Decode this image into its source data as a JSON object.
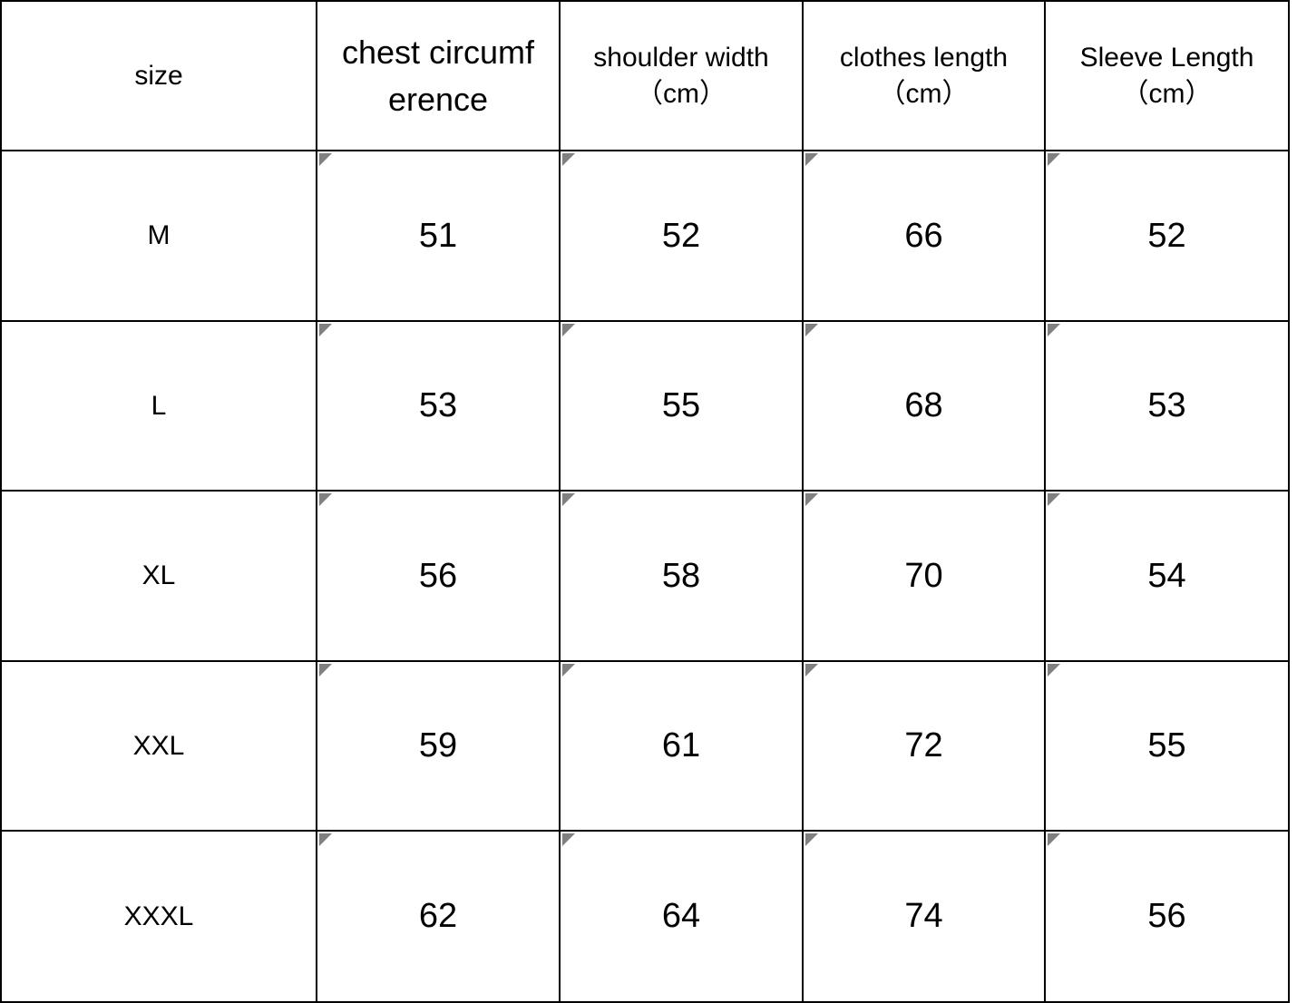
{
  "table": {
    "header": [
      "size",
      "chest circumference",
      "shoulder width（cm）",
      "clothes length（cm）",
      "Sleeve Length（cm）"
    ],
    "rows": [
      [
        "M",
        51,
        52,
        66,
        52
      ],
      [
        "L",
        53,
        55,
        68,
        53
      ],
      [
        "XL",
        56,
        58,
        70,
        54
      ],
      [
        "XXL",
        59,
        61,
        72,
        55
      ],
      [
        "XXXL",
        62,
        64,
        74,
        56
      ]
    ]
  }
}
